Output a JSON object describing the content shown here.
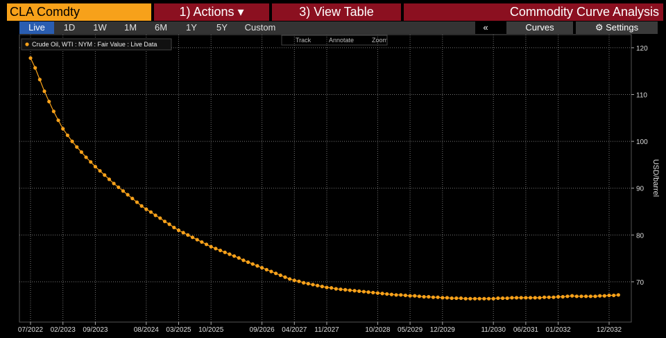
{
  "header": {
    "ticker": "CLA Comdty",
    "actions": "1) Actions ▾",
    "view_table": "3) View Table",
    "title": "Commodity Curve Analysis"
  },
  "tabs": [
    "Live",
    "1D",
    "1W",
    "1M",
    "6M",
    "1Y",
    "5Y",
    "Custom"
  ],
  "active_tab": "Live",
  "right_buttons": {
    "collapse": "«",
    "curves": "Curves",
    "settings": "Settings"
  },
  "chart_tools": [
    "Track",
    "Annotate",
    "Zoom"
  ],
  "chart_data": {
    "type": "line",
    "y_label": "USD/barrel",
    "grid": true,
    "legend": "top-left",
    "series": [
      {
        "name": "Crude Oil, WTI : NYM : Fair Value : Live Data",
        "color": "#f7a11a",
        "values": [
          117.8,
          115.7,
          113.2,
          110.7,
          108.5,
          106.4,
          104.5,
          102.7,
          101.3,
          100.0,
          98.8,
          97.7,
          96.6,
          95.6,
          94.6,
          93.7,
          92.8,
          91.9,
          91.0,
          90.2,
          89.4,
          88.6,
          87.8,
          87.0,
          86.2,
          85.5,
          84.9,
          84.2,
          83.6,
          82.9,
          82.3,
          81.6,
          81.0,
          80.5,
          80.0,
          79.5,
          79.0,
          78.5,
          78.0,
          77.5,
          77.1,
          76.7,
          76.3,
          75.9,
          75.5,
          75.1,
          74.6,
          74.2,
          73.8,
          73.4,
          73.0,
          72.6,
          72.2,
          71.8,
          71.4,
          71.0,
          70.6,
          70.3,
          70.1,
          69.8,
          69.6,
          69.4,
          69.2,
          69.0,
          68.8,
          68.7,
          68.5,
          68.4,
          68.3,
          68.2,
          68.1,
          68.0,
          67.9,
          67.8,
          67.7,
          67.6,
          67.5,
          67.4,
          67.3,
          67.2,
          67.2,
          67.1,
          67.0,
          67.0,
          66.9,
          66.8,
          66.8,
          66.7,
          66.7,
          66.6,
          66.6,
          66.5,
          66.5,
          66.5,
          66.4,
          66.4,
          66.4,
          66.4,
          66.4,
          66.4,
          66.4,
          66.5,
          66.5,
          66.5,
          66.6,
          66.6,
          66.6,
          66.6,
          66.6,
          66.6,
          66.6,
          66.7,
          66.7,
          66.7,
          66.8,
          66.8,
          66.9,
          67.0,
          66.9,
          66.9,
          66.9,
          66.9,
          66.9,
          67.0,
          67.0,
          67.1,
          67.1,
          67.2
        ]
      }
    ],
    "x": [
      "07/2022",
      "08/2022",
      "09/2022",
      "10/2022",
      "11/2022",
      "12/2022",
      "01/2023",
      "02/2023",
      "03/2023",
      "04/2023",
      "05/2023",
      "06/2023",
      "07/2023",
      "08/2023",
      "09/2023",
      "10/2023",
      "11/2023",
      "12/2023",
      "01/2024",
      "02/2024",
      "03/2024",
      "04/2024",
      "05/2024",
      "06/2024",
      "07/2024",
      "08/2024",
      "09/2024",
      "10/2024",
      "11/2024",
      "12/2024",
      "01/2025",
      "02/2025",
      "03/2025",
      "04/2025",
      "05/2025",
      "06/2025",
      "07/2025",
      "08/2025",
      "09/2025",
      "10/2025",
      "11/2025",
      "12/2025",
      "01/2026",
      "02/2026",
      "03/2026",
      "04/2026",
      "05/2026",
      "06/2026",
      "07/2026",
      "08/2026",
      "09/2026",
      "10/2026",
      "11/2026",
      "12/2026",
      "01/2027",
      "02/2027",
      "03/2027",
      "04/2027",
      "05/2027",
      "06/2027",
      "07/2027",
      "08/2027",
      "09/2027",
      "10/2027",
      "11/2027",
      "12/2027",
      "01/2028",
      "02/2028",
      "03/2028",
      "04/2028",
      "05/2028",
      "06/2028",
      "07/2028",
      "08/2028",
      "09/2028",
      "10/2028",
      "11/2028",
      "12/2028",
      "01/2029",
      "02/2029",
      "03/2029",
      "04/2029",
      "05/2029",
      "06/2029",
      "07/2029",
      "08/2029",
      "09/2029",
      "10/2029",
      "11/2029",
      "12/2029",
      "01/2030",
      "02/2030",
      "03/2030",
      "04/2030",
      "05/2030",
      "06/2030",
      "07/2030",
      "08/2030",
      "09/2030",
      "10/2030",
      "11/2030",
      "12/2030",
      "01/2031",
      "02/2031",
      "03/2031",
      "04/2031",
      "05/2031",
      "06/2031",
      "07/2031",
      "08/2031",
      "09/2031",
      "10/2031",
      "11/2031",
      "12/2031",
      "01/2032",
      "02/2032",
      "03/2032",
      "04/2032",
      "05/2032",
      "06/2032",
      "07/2032",
      "08/2032",
      "09/2032",
      "10/2032",
      "11/2032",
      "12/2032",
      "01/2033",
      "02/2033"
    ],
    "xticks": [
      "07/2022",
      "02/2023",
      "09/2023",
      "08/2024",
      "03/2025",
      "10/2025",
      "09/2026",
      "04/2027",
      "11/2027",
      "10/2028",
      "05/2029",
      "12/2029",
      "11/2030",
      "06/2031",
      "01/2032",
      "12/2032"
    ],
    "ylim": [
      61.4,
      122.8
    ],
    "yticks": [
      70,
      80,
      90,
      100,
      110,
      120
    ]
  }
}
